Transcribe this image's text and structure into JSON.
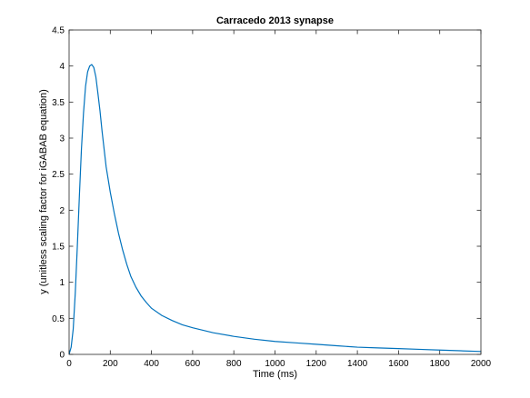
{
  "chart_data": {
    "type": "line",
    "title": "Carracedo 2013 synapse",
    "xlabel": "Time (ms)",
    "ylabel": "y (unitless scaling factor for iGABAB equation)",
    "xlim": [
      0,
      2000
    ],
    "ylim": [
      0,
      4.5
    ],
    "xticks": [
      "0",
      "200",
      "400",
      "600",
      "800",
      "1000",
      "1200",
      "1400",
      "1600",
      "1800",
      "2000"
    ],
    "yticks": [
      "0",
      "0.5",
      "1",
      "1.5",
      "2",
      "2.5",
      "3",
      "3.5",
      "4",
      "4.5"
    ],
    "grid": false,
    "line_color": "#0072bd",
    "series": [
      {
        "x": [
          0,
          10,
          20,
          30,
          40,
          50,
          60,
          70,
          80,
          90,
          100,
          110,
          120,
          130,
          140,
          150,
          160,
          170,
          180,
          200,
          220,
          240,
          260,
          280,
          300,
          325,
          350,
          375,
          400,
          450,
          500,
          550,
          600,
          700,
          800,
          900,
          1000,
          1100,
          1200,
          1300,
          1400,
          1500,
          1600,
          1700,
          1800,
          1900,
          2000
        ],
        "y": [
          0,
          0.1,
          0.35,
          0.85,
          1.5,
          2.2,
          2.85,
          3.35,
          3.72,
          3.92,
          4.0,
          4.02,
          3.98,
          3.85,
          3.62,
          3.38,
          3.1,
          2.85,
          2.6,
          2.25,
          1.95,
          1.68,
          1.45,
          1.25,
          1.08,
          0.93,
          0.81,
          0.72,
          0.64,
          0.54,
          0.47,
          0.41,
          0.37,
          0.3,
          0.25,
          0.21,
          0.18,
          0.16,
          0.14,
          0.12,
          0.1,
          0.09,
          0.08,
          0.07,
          0.06,
          0.05,
          0.04
        ]
      }
    ]
  }
}
